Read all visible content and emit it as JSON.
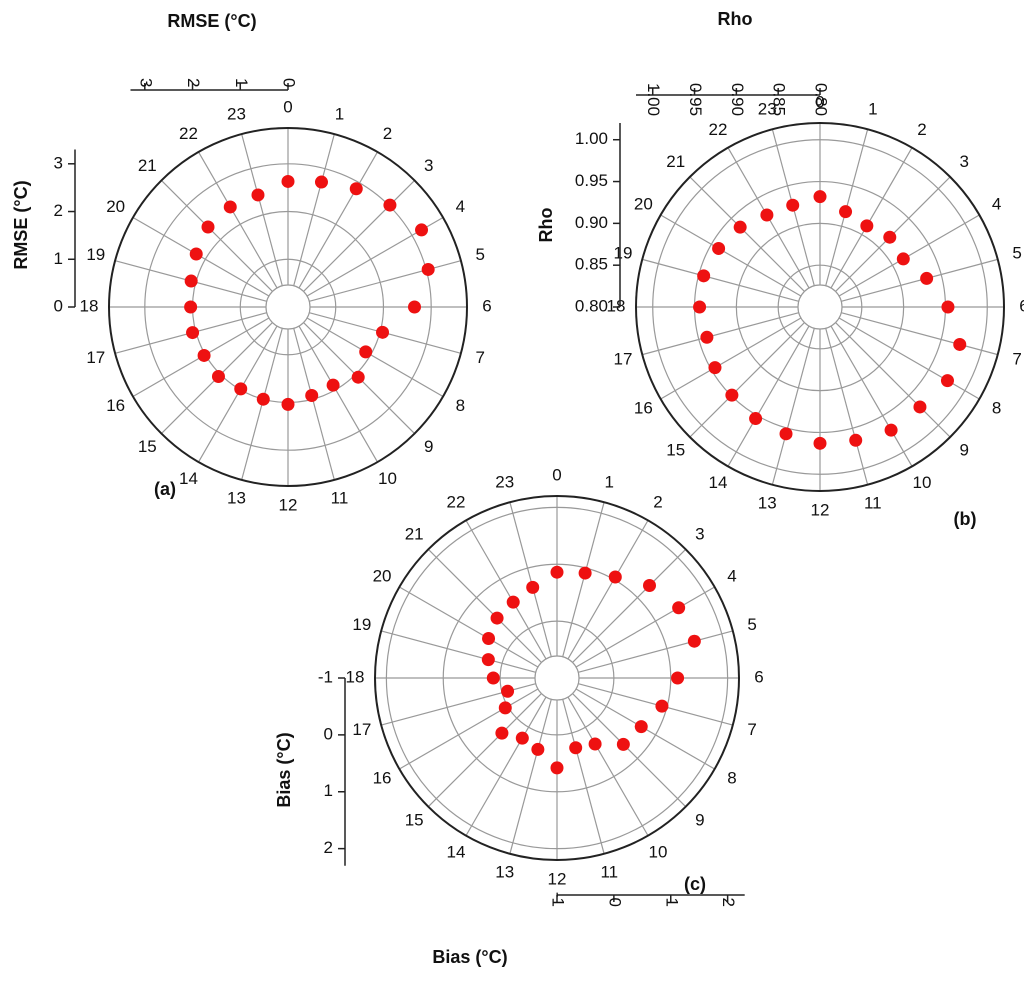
{
  "chart_data": [
    {
      "type": "polar",
      "axis_label": "RMSE (°C)",
      "panel_label": "(a)",
      "categories": [
        "0",
        "1",
        "2",
        "3",
        "4",
        "5",
        "6",
        "7",
        "8",
        "9",
        "10",
        "11",
        "12",
        "13",
        "14",
        "15",
        "16",
        "17",
        "18",
        "19",
        "20",
        "21",
        "22",
        "23"
      ],
      "values": [
        2.63,
        2.71,
        2.86,
        3.02,
        3.23,
        3.04,
        2.65,
        2.05,
        1.88,
        2.08,
        1.89,
        1.92,
        2.04,
        2.0,
        1.98,
        2.06,
        2.03,
        2.07,
        2.04,
        2.1,
        2.22,
        2.37,
        2.42,
        2.43
      ],
      "color": "#ee1111",
      "rlim": [
        0,
        3.75
      ],
      "rticks": [
        0,
        1,
        2,
        3
      ]
    },
    {
      "type": "polar",
      "axis_label": "Rho",
      "panel_label": "(b)",
      "categories": [
        "0",
        "1",
        "2",
        "3",
        "4",
        "5",
        "6",
        "7",
        "8",
        "9",
        "10",
        "11",
        "12",
        "13",
        "14",
        "15",
        "16",
        "17",
        "18",
        "19",
        "20",
        "21",
        "22",
        "23"
      ],
      "values": [
        0.932,
        0.918,
        0.912,
        0.918,
        0.915,
        0.932,
        0.953,
        0.973,
        0.976,
        0.969,
        0.97,
        0.965,
        0.963,
        0.957,
        0.954,
        0.949,
        0.945,
        0.94,
        0.944,
        0.944,
        0.94,
        0.935,
        0.927,
        0.926
      ],
      "color": "#ee1111",
      "rlim": [
        0.8,
        1.02
      ],
      "rticks": [
        {
          "value": 0.8,
          "label": "0.80"
        },
        0.85,
        {
          "value": 0.9,
          "label": "0.90"
        },
        0.95,
        {
          "value": 1.0,
          "label": "1.00"
        }
      ]
    },
    {
      "type": "polar",
      "axis_label": "Bias (°C)",
      "panel_label": "(c)",
      "categories": [
        "0",
        "1",
        "2",
        "3",
        "4",
        "5",
        "6",
        "7",
        "8",
        "9",
        "10",
        "11",
        "12",
        "13",
        "14",
        "15",
        "16",
        "17",
        "18",
        "19",
        "20",
        "21",
        "22",
        "23"
      ],
      "values": [
        0.86,
        0.91,
        1.05,
        1.3,
        1.47,
        1.5,
        1.12,
        0.91,
        0.71,
        0.65,
        0.34,
        0.27,
        0.58,
        0.3,
        0.22,
        0.37,
        0.05,
        -0.1,
        0.12,
        0.25,
        0.39,
        0.49,
        0.54,
        0.65
      ],
      "color": "#ee1111",
      "rlim": [
        -1,
        2.2
      ],
      "rticks": [
        -1,
        0,
        1,
        2
      ]
    }
  ]
}
